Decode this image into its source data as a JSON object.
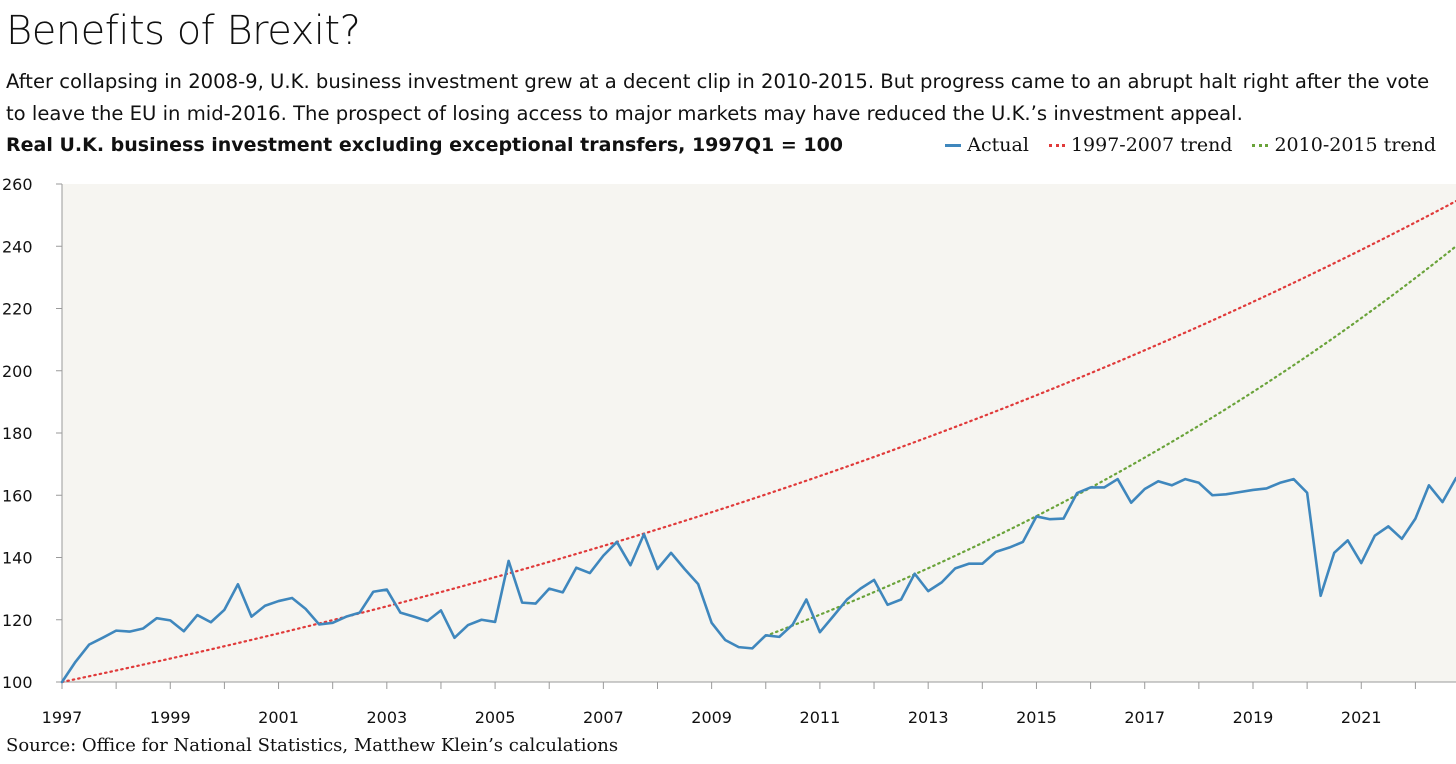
{
  "header": {
    "title": "Benefits of Brexit?",
    "subtitle": "After collapsing in 2008-9, U.K. business investment grew at a decent clip in 2010-2015. But progress came to an abrupt halt right after the vote to leave the EU in mid-2016. The prospect of losing access to major markets may have reduced the U.K.’s investment appeal."
  },
  "footer": {
    "source": "Source: Office for National Statistics, Matthew Klein’s calculations"
  },
  "chart_data": {
    "type": "line",
    "title": "Real U.K. business investment excluding exceptional transfers, 1997Q1 = 100",
    "xlabel": "",
    "ylabel": "",
    "xlim": [
      1997.0,
      2022.75
    ],
    "ylim": [
      100,
      260
    ],
    "yticks": [
      100,
      120,
      140,
      160,
      180,
      200,
      220,
      240,
      260
    ],
    "xticks": [
      "1997",
      "1999",
      "2001",
      "2003",
      "2005",
      "2007",
      "2009",
      "2011",
      "2013",
      "2015",
      "2017",
      "2019",
      "2021"
    ],
    "grid": false,
    "legend_position": "top-right",
    "background_color": "#f6f5f1",
    "series": [
      {
        "name": "Actual",
        "style": "solid",
        "color": "#3f87bd",
        "x_start": "1997Q1",
        "frequency": "quarterly",
        "values": [
          100,
          106.5,
          112,
          114.2,
          116.5,
          116.2,
          117.2,
          120.5,
          119.8,
          116.3,
          121.5,
          119.2,
          123.2,
          131.4,
          121,
          124.5,
          126,
          127,
          123.5,
          118.5,
          119,
          121,
          122.3,
          129,
          129.7,
          122.3,
          121,
          119.6,
          123,
          114.2,
          118.3,
          120,
          119.3,
          138.9,
          125.5,
          125.2,
          130,
          128.8,
          136.7,
          135,
          140.6,
          145,
          137.5,
          147.5,
          136.3,
          141.5,
          136.3,
          131.5,
          119,
          113.5,
          111.2,
          110.8,
          115,
          114.5,
          118.5,
          126.5,
          116,
          121.2,
          126.5,
          130,
          132.8,
          124.8,
          126.5,
          134.8,
          129.2,
          132,
          136.5,
          138,
          138,
          141.8,
          143.2,
          145,
          153.2,
          152.3,
          152.5,
          160.7,
          162.5,
          162.5,
          165.2,
          157.6,
          162,
          164.5,
          163.2,
          165.2,
          164,
          160,
          160.3,
          161,
          161.7,
          162.2,
          164,
          165.2,
          160.8,
          127.7,
          141.5,
          145.5,
          138.2,
          147,
          150,
          146,
          152.5,
          163.2,
          157.8,
          165.5
        ]
      },
      {
        "name": "1997-2007 trend",
        "style": "dotted",
        "color": "#e03a3a",
        "x": [
          1997.0,
          2022.75
        ],
        "start_value": 100,
        "end_value": 254.5,
        "growth": "exponential"
      },
      {
        "name": "2010-2015 trend",
        "style": "dotted",
        "color": "#6aa33a",
        "x": [
          2010.0,
          2022.75
        ],
        "start_value": 114.8,
        "end_value": 240,
        "growth": "exponential"
      }
    ]
  }
}
